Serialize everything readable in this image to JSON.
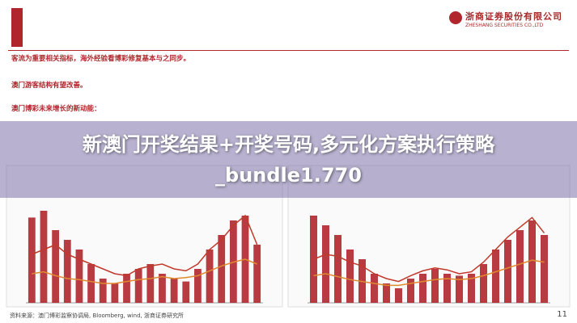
{
  "header": {
    "company": "浙商证券股份有限公司",
    "company_en": "ZHESHANG SECURITIES CO.,LTD"
  },
  "bullets": [
    "客流为重要相关指标，海外经验看博彩修复基本与之同步。",
    "澳门游客结构有望改善。",
    "澳门博彩未来增长的新动能："
  ],
  "overlay_title": "新澳门开奖结果+开奖号码,多元化方案执行策略_bundle1.770",
  "charts": [
    {
      "type": "bar",
      "ylim": [
        0,
        100
      ],
      "bars": {
        "color": "#b0262c",
        "values": [
          88,
          95,
          75,
          65,
          55,
          40,
          25,
          20,
          30,
          35,
          40,
          30,
          25,
          22,
          35,
          55,
          70,
          85,
          90,
          60
        ]
      },
      "lines": [
        {
          "color": "#c0392b",
          "values": [
            50,
            55,
            60,
            50,
            45,
            40,
            35,
            30,
            28,
            35,
            38,
            40,
            35,
            33,
            40,
            55,
            65,
            80,
            90,
            60
          ]
        },
        {
          "color": "#e08a2e",
          "values": [
            30,
            32,
            28,
            25,
            24,
            22,
            20,
            20,
            22,
            24,
            25,
            27,
            25,
            26,
            28,
            33,
            38,
            42,
            45,
            40
          ]
        }
      ]
    },
    {
      "type": "bar",
      "ylim": [
        0,
        100
      ],
      "bars": {
        "color": "#b0262c",
        "values": [
          90,
          80,
          70,
          55,
          45,
          30,
          20,
          15,
          25,
          30,
          35,
          30,
          28,
          30,
          40,
          55,
          65,
          75,
          85,
          70
        ]
      },
      "lines": [
        {
          "color": "#c0392b",
          "values": [
            45,
            50,
            48,
            42,
            38,
            30,
            25,
            22,
            28,
            33,
            36,
            34,
            30,
            32,
            42,
            55,
            68,
            78,
            88,
            72
          ]
        },
        {
          "color": "#e08a2e",
          "values": [
            28,
            30,
            27,
            24,
            22,
            20,
            18,
            18,
            20,
            22,
            24,
            25,
            24,
            25,
            28,
            32,
            36,
            40,
            44,
            42
          ]
        }
      ]
    }
  ],
  "source": "资料来源：澳门博彩监察协调局, Bloomberg, wind, 浙商证券研究所",
  "page": "11"
}
